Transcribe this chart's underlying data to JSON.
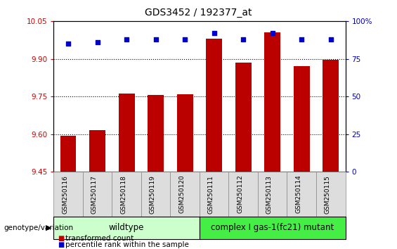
{
  "title": "GDS3452 / 192377_at",
  "samples": [
    "GSM250116",
    "GSM250117",
    "GSM250118",
    "GSM250119",
    "GSM250120",
    "GSM250111",
    "GSM250112",
    "GSM250113",
    "GSM250114",
    "GSM250115"
  ],
  "transformed_count": [
    9.595,
    9.615,
    9.762,
    9.755,
    9.76,
    9.98,
    9.885,
    10.005,
    9.87,
    9.895
  ],
  "percentile_rank": [
    85,
    86,
    88,
    88,
    88,
    92,
    88,
    92,
    88,
    88
  ],
  "ylim_left": [
    9.45,
    10.05
  ],
  "ylim_right": [
    0,
    100
  ],
  "yticks_left": [
    9.45,
    9.6,
    9.75,
    9.9,
    10.05
  ],
  "yticks_right": [
    0,
    25,
    50,
    75,
    100
  ],
  "bar_color": "#bb0000",
  "dot_color": "#0000cc",
  "wildtype_color": "#ccffcc",
  "mutant_color": "#44ee44",
  "wildtype_label": "wildtype",
  "mutant_label": "complex I gas-1(fc21) mutant",
  "n_wildtype": 5,
  "n_mutant": 5,
  "legend_bar_label": "transformed count",
  "legend_dot_label": "percentile rank within the sample",
  "genotype_label": "genotype/variation",
  "right_yaxis_color": "#0000bb",
  "tick_label_color_left": "#cc0000",
  "tick_label_color_right": "#0000bb",
  "bar_bottom": 9.45,
  "bar_width": 0.55
}
